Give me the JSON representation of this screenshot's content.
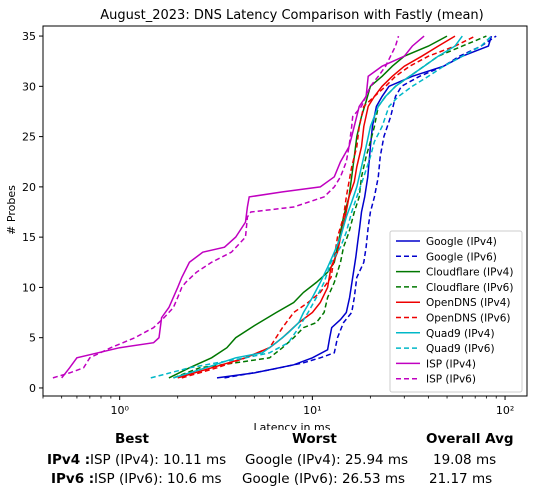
{
  "chart_data": {
    "type": "line",
    "title": "August_2023: DNS Latency Comparison with Fastly (mean)",
    "xlabel": "Latency in ms",
    "ylabel": "# Probes",
    "x_scale": "log",
    "xlim": [
      0.4,
      130
    ],
    "ylim": [
      -0.8,
      36
    ],
    "x_ticks": [
      1,
      10,
      100
    ],
    "x_tick_labels": [
      "10⁰",
      "10¹",
      "10²"
    ],
    "y_ticks": [
      0,
      5,
      10,
      15,
      20,
      25,
      30,
      35
    ],
    "grid": false,
    "legend_position": "lower-right",
    "series": [
      {
        "name": "Google (IPv4)",
        "color": "#0000cc",
        "dash": "solid",
        "points": [
          [
            3.2,
            1
          ],
          [
            5,
            1.5
          ],
          [
            8,
            2.3
          ],
          [
            10,
            3
          ],
          [
            12,
            3.8
          ],
          [
            12.3,
            5
          ],
          [
            12.6,
            6
          ],
          [
            14,
            6.8
          ],
          [
            15,
            7.5
          ],
          [
            15.6,
            9
          ],
          [
            16.2,
            11
          ],
          [
            16.8,
            13
          ],
          [
            17.2,
            14.5
          ],
          [
            17.6,
            16
          ],
          [
            18,
            17.5
          ],
          [
            18.7,
            19
          ],
          [
            19.4,
            21
          ],
          [
            20,
            24
          ],
          [
            20.5,
            26
          ],
          [
            21.5,
            28
          ],
          [
            23,
            29
          ],
          [
            25,
            30
          ],
          [
            33,
            31
          ],
          [
            48,
            32
          ],
          [
            60,
            33
          ],
          [
            82,
            34
          ],
          [
            85,
            35
          ]
        ]
      },
      {
        "name": "Google (IPv6)",
        "color": "#0000cc",
        "dash": "dashed",
        "points": [
          [
            3.5,
            1
          ],
          [
            6,
            1.8
          ],
          [
            9,
            2.5
          ],
          [
            11,
            3
          ],
          [
            13,
            3.5
          ],
          [
            13.5,
            5
          ],
          [
            14.5,
            6.5
          ],
          [
            16,
            7.5
          ],
          [
            16.5,
            9
          ],
          [
            17,
            11
          ],
          [
            18.5,
            12.5
          ],
          [
            19,
            14
          ],
          [
            19.5,
            16
          ],
          [
            20,
            17.5
          ],
          [
            21,
            19
          ],
          [
            22,
            21
          ],
          [
            22.5,
            23
          ],
          [
            23.5,
            25
          ],
          [
            25.5,
            27
          ],
          [
            27,
            29
          ],
          [
            29,
            30
          ],
          [
            36,
            31
          ],
          [
            48,
            32
          ],
          [
            58,
            33
          ],
          [
            75,
            34
          ],
          [
            90,
            35
          ]
        ]
      },
      {
        "name": "Cloudflare (IPv4)",
        "color": "#007700",
        "dash": "solid",
        "points": [
          [
            1.8,
            1
          ],
          [
            2.3,
            2
          ],
          [
            3,
            3
          ],
          [
            3.6,
            4
          ],
          [
            4,
            5
          ],
          [
            5,
            6.2
          ],
          [
            6.5,
            7.5
          ],
          [
            8,
            8.5
          ],
          [
            9,
            9.5
          ],
          [
            10.5,
            10.5
          ],
          [
            12,
            11.5
          ],
          [
            13,
            12.5
          ],
          [
            13.5,
            14
          ],
          [
            14,
            15.5
          ],
          [
            14.5,
            17
          ],
          [
            15.5,
            19
          ],
          [
            16,
            21
          ],
          [
            16.5,
            23
          ],
          [
            17,
            25
          ],
          [
            18,
            27
          ],
          [
            19,
            28.5
          ],
          [
            20,
            30
          ],
          [
            23,
            31
          ],
          [
            26,
            32
          ],
          [
            30,
            33
          ],
          [
            40,
            34
          ],
          [
            50,
            35
          ]
        ]
      },
      {
        "name": "Cloudflare (IPv6)",
        "color": "#007700",
        "dash": "dashed",
        "points": [
          [
            1.9,
            1
          ],
          [
            2.6,
            2
          ],
          [
            4,
            2.5
          ],
          [
            6,
            3
          ],
          [
            7,
            4
          ],
          [
            8,
            5
          ],
          [
            9,
            6
          ],
          [
            10.5,
            6.5
          ],
          [
            11.5,
            7.5
          ],
          [
            12,
            9
          ],
          [
            13,
            10.5
          ],
          [
            14,
            12.5
          ],
          [
            14.5,
            14
          ],
          [
            15.5,
            15.5
          ],
          [
            16.5,
            17.5
          ],
          [
            17.5,
            19
          ],
          [
            18,
            21
          ],
          [
            19,
            23
          ],
          [
            20,
            24.5
          ],
          [
            21,
            26
          ],
          [
            22,
            28
          ],
          [
            24,
            29
          ],
          [
            27,
            30
          ],
          [
            32,
            31
          ],
          [
            38,
            32
          ],
          [
            45,
            33
          ],
          [
            60,
            34
          ],
          [
            80,
            35
          ]
        ]
      },
      {
        "name": "OpenDNS (IPv4)",
        "color": "#ee0000",
        "dash": "solid",
        "points": [
          [
            2,
            1
          ],
          [
            3,
            2
          ],
          [
            4.5,
            3
          ],
          [
            6,
            4
          ],
          [
            7,
            5
          ],
          [
            8.5,
            6.5
          ],
          [
            10,
            7.5
          ],
          [
            11,
            8.5
          ],
          [
            12,
            10
          ],
          [
            12.5,
            12
          ],
          [
            13.5,
            13.5
          ],
          [
            14,
            15
          ],
          [
            14.8,
            17
          ],
          [
            15.5,
            19
          ],
          [
            16.5,
            20.5
          ],
          [
            17,
            22
          ],
          [
            18,
            24
          ],
          [
            18.5,
            26
          ],
          [
            19.5,
            28
          ],
          [
            21,
            29
          ],
          [
            23,
            30
          ],
          [
            26,
            31
          ],
          [
            30,
            32
          ],
          [
            37,
            33
          ],
          [
            45,
            34
          ],
          [
            55,
            35
          ]
        ]
      },
      {
        "name": "OpenDNS (IPv6)",
        "color": "#ee0000",
        "dash": "dashed",
        "points": [
          [
            2.1,
            1
          ],
          [
            3.2,
            2
          ],
          [
            4.5,
            3
          ],
          [
            6,
            4
          ],
          [
            7,
            6
          ],
          [
            8,
            7.5
          ],
          [
            9.5,
            8.5
          ],
          [
            11,
            9.5
          ],
          [
            12.5,
            11
          ],
          [
            13,
            13
          ],
          [
            13.5,
            15
          ],
          [
            14.5,
            17
          ],
          [
            15,
            19
          ],
          [
            15.5,
            20.5
          ],
          [
            16,
            22
          ],
          [
            17,
            24
          ],
          [
            17.5,
            26
          ],
          [
            18.5,
            28
          ],
          [
            21,
            29
          ],
          [
            24,
            30
          ],
          [
            27,
            31
          ],
          [
            32,
            32
          ],
          [
            40,
            33
          ],
          [
            55,
            34
          ],
          [
            70,
            35
          ]
        ]
      },
      {
        "name": "Quad9 (IPv4)",
        "color": "#00b8c8",
        "dash": "solid",
        "points": [
          [
            1.9,
            1
          ],
          [
            2.8,
            2
          ],
          [
            4,
            3
          ],
          [
            5.5,
            3.5
          ],
          [
            6.5,
            4.5
          ],
          [
            7.5,
            5.5
          ],
          [
            8.5,
            6.5
          ],
          [
            9,
            7.5
          ],
          [
            10,
            9
          ],
          [
            11,
            10.5
          ],
          [
            12,
            12
          ],
          [
            13,
            13.5
          ],
          [
            14,
            15
          ],
          [
            15,
            17
          ],
          [
            16,
            18.5
          ],
          [
            17,
            20
          ],
          [
            18,
            22
          ],
          [
            19,
            24
          ],
          [
            20,
            26
          ],
          [
            22,
            28
          ],
          [
            24,
            29
          ],
          [
            27,
            30
          ],
          [
            32,
            31
          ],
          [
            38,
            32
          ],
          [
            45,
            33
          ],
          [
            55,
            34
          ],
          [
            60,
            35
          ]
        ]
      },
      {
        "name": "Quad9 (IPv6)",
        "color": "#00b8c8",
        "dash": "dashed",
        "points": [
          [
            1.45,
            1
          ],
          [
            2.3,
            2
          ],
          [
            3.2,
            2.5
          ],
          [
            4.5,
            3
          ],
          [
            6,
            3.5
          ],
          [
            7.5,
            4.5
          ],
          [
            8.5,
            6
          ],
          [
            9.5,
            7.5
          ],
          [
            10.5,
            9
          ],
          [
            11.5,
            10.5
          ],
          [
            12.5,
            12.5
          ],
          [
            14,
            14
          ],
          [
            15,
            15.5
          ],
          [
            16,
            17.5
          ],
          [
            17,
            19
          ],
          [
            18.5,
            21
          ],
          [
            20,
            23
          ],
          [
            21,
            24.5
          ],
          [
            23,
            26
          ],
          [
            25,
            28
          ],
          [
            28,
            29
          ],
          [
            33,
            30
          ],
          [
            40,
            31
          ],
          [
            48,
            32
          ],
          [
            60,
            33
          ],
          [
            75,
            34
          ],
          [
            85,
            35
          ]
        ]
      },
      {
        "name": "ISP (IPv4)",
        "color": "#c000c0",
        "dash": "solid",
        "points": [
          [
            0.5,
            1
          ],
          [
            0.55,
            2
          ],
          [
            0.6,
            3
          ],
          [
            1,
            4
          ],
          [
            1.5,
            4.5
          ],
          [
            1.6,
            5
          ],
          [
            1.65,
            7
          ],
          [
            1.8,
            8
          ],
          [
            2,
            10
          ],
          [
            2.1,
            11
          ],
          [
            2.3,
            12.5
          ],
          [
            2.7,
            13.5
          ],
          [
            3.5,
            14
          ],
          [
            4,
            15
          ],
          [
            4.5,
            16.5
          ],
          [
            4.6,
            18
          ],
          [
            4.7,
            19
          ],
          [
            7,
            19.5
          ],
          [
            11,
            20
          ],
          [
            13,
            21
          ],
          [
            14,
            22.5
          ],
          [
            15.5,
            24
          ],
          [
            16,
            25
          ],
          [
            17.5,
            28
          ],
          [
            19,
            29
          ],
          [
            19.5,
            31
          ],
          [
            23,
            32
          ],
          [
            30,
            33
          ],
          [
            33,
            34
          ],
          [
            38,
            35
          ]
        ]
      },
      {
        "name": "ISP (IPv6)",
        "color": "#c000c0",
        "dash": "dashed",
        "points": [
          [
            0.45,
            1
          ],
          [
            0.55,
            1.5
          ],
          [
            0.65,
            2
          ],
          [
            0.7,
            3
          ],
          [
            0.9,
            4
          ],
          [
            1.2,
            5
          ],
          [
            1.5,
            6
          ],
          [
            1.7,
            7
          ],
          [
            1.9,
            8
          ],
          [
            2,
            9
          ],
          [
            2.1,
            10
          ],
          [
            2.2,
            10.5
          ],
          [
            2.5,
            11.5
          ],
          [
            3,
            12.5
          ],
          [
            3.8,
            13.5
          ],
          [
            4.5,
            15
          ],
          [
            4.6,
            17
          ],
          [
            4.8,
            17.5
          ],
          [
            8,
            18
          ],
          [
            11.5,
            19
          ],
          [
            13,
            20
          ],
          [
            14,
            21
          ],
          [
            15,
            22.5
          ],
          [
            15.5,
            24
          ],
          [
            16,
            26
          ],
          [
            16.2,
            27
          ],
          [
            18,
            28
          ],
          [
            20,
            30
          ],
          [
            22,
            31
          ],
          [
            24,
            32
          ],
          [
            27,
            34
          ],
          [
            28,
            35
          ]
        ]
      }
    ]
  },
  "summary": {
    "headers": {
      "best": "Best",
      "worst": "Worst",
      "avg": "Overall Avg"
    },
    "rows": [
      {
        "label": "IPv4 :",
        "best": "ISP (IPv4): 10.11 ms",
        "worst": "Google (IPv4): 25.94 ms",
        "avg": "19.08 ms"
      },
      {
        "label": "IPv6 :",
        "best": "ISP (IPv6): 10.6 ms",
        "worst": "Google (IPv6): 26.53 ms",
        "avg": "21.17 ms"
      }
    ]
  }
}
